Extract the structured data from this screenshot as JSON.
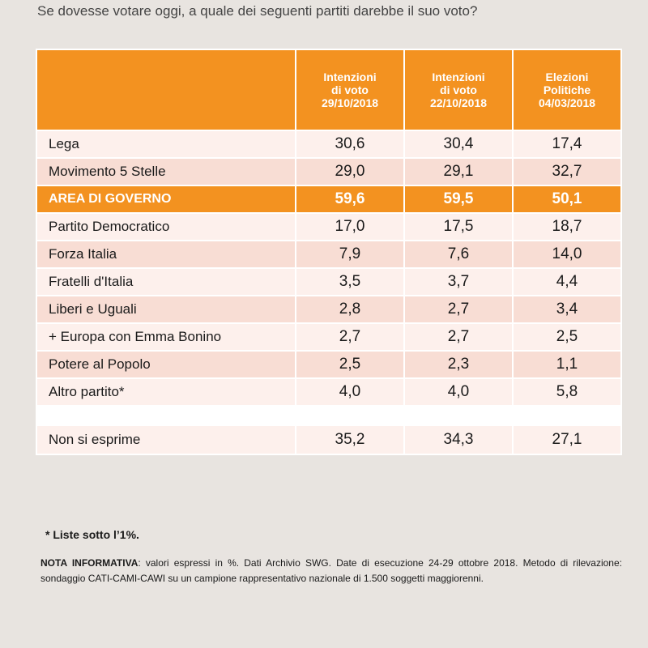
{
  "question": "Se dovesse votare oggi, a quale dei seguenti partiti darebbe il suo voto?",
  "chart_data": {
    "type": "table",
    "columns": [
      {
        "line1": "Intenzioni",
        "line2": "di voto",
        "line3": "29/10/2018"
      },
      {
        "line1": "Intenzioni",
        "line2": "di voto",
        "line3": "22/10/2018"
      },
      {
        "line1": "Elezioni",
        "line2": "Politiche",
        "line3": "04/03/2018"
      }
    ],
    "rows": [
      {
        "label": "Lega",
        "values": [
          "30,6",
          "30,4",
          "17,4"
        ]
      },
      {
        "label": "Movimento 5 Stelle",
        "values": [
          "29,0",
          "29,1",
          "32,7"
        ]
      },
      {
        "label": "AREA DI GOVERNO",
        "values": [
          "59,6",
          "59,5",
          "50,1"
        ]
      },
      {
        "label": "Partito Democratico",
        "values": [
          "17,0",
          "17,5",
          "18,7"
        ]
      },
      {
        "label": "Forza Italia",
        "values": [
          "7,9",
          "7,6",
          "14,0"
        ]
      },
      {
        "label": "Fratelli d'Italia",
        "values": [
          "3,5",
          "3,7",
          "4,4"
        ]
      },
      {
        "label": "Liberi e Uguali",
        "values": [
          "2,8",
          "2,7",
          "3,4"
        ]
      },
      {
        "label": "+ Europa con Emma Bonino",
        "values": [
          "2,7",
          "2,7",
          "2,5"
        ]
      },
      {
        "label": "Potere al Popolo",
        "values": [
          "2,5",
          "2,3",
          "1,1"
        ]
      },
      {
        "label": "Altro partito*",
        "values": [
          "4,0",
          "4,0",
          "5,8"
        ]
      }
    ],
    "extra_row": {
      "label": "Non si esprime",
      "values": [
        "35,2",
        "34,3",
        "27,1"
      ]
    }
  },
  "colors": {
    "header": "#f39220",
    "row_light": "#fdf0ec",
    "row_dark": "#f8ddd4",
    "background": "#e8e4e0"
  },
  "footnote": "* Liste sotto l’1%.",
  "nota": {
    "label": "NOTA INFORMATIVA",
    "text": ": valori espressi in %. Dati Archivio SWG. Date di esecuzione 24-29 ottobre 2018. Metodo di rilevazione: sondaggio CATI-CAMI-CAWI su un campione rappresentativo nazionale di 1.500 soggetti maggiorenni."
  }
}
